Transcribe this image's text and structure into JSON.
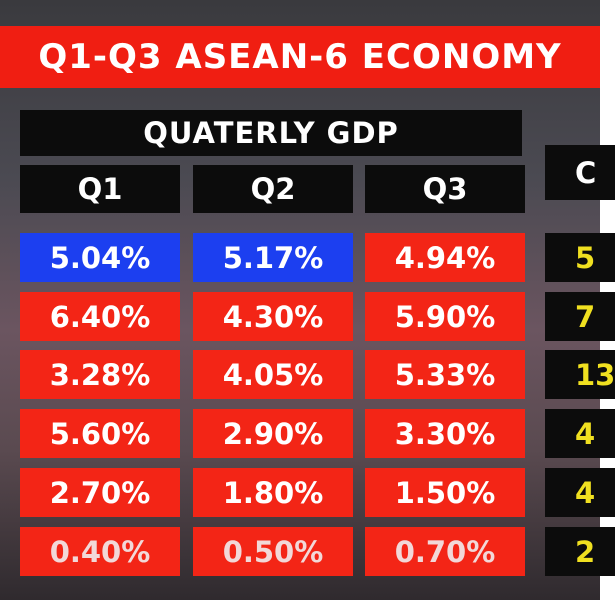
{
  "header": {
    "title": "Q1-Q3 ASEAN-6 ECONOMY"
  },
  "table": {
    "group_header": "QUATERLY GDP",
    "columns": [
      "Q1",
      "Q2",
      "Q3"
    ],
    "rows": [
      [
        "5.04%",
        "5.17%",
        "4.94%"
      ],
      [
        "6.40%",
        "4.30%",
        "5.90%"
      ],
      [
        "3.28%",
        "4.05%",
        "5.33%"
      ],
      [
        "5.60%",
        "2.90%",
        "3.30%"
      ],
      [
        "2.70%",
        "1.80%",
        "1.50%"
      ],
      [
        "0.40%",
        "0.50%",
        "0.70%"
      ]
    ],
    "side_column": {
      "header": "C",
      "cells": [
        "5",
        "7",
        "13",
        "4",
        "4",
        "2"
      ]
    }
  }
}
